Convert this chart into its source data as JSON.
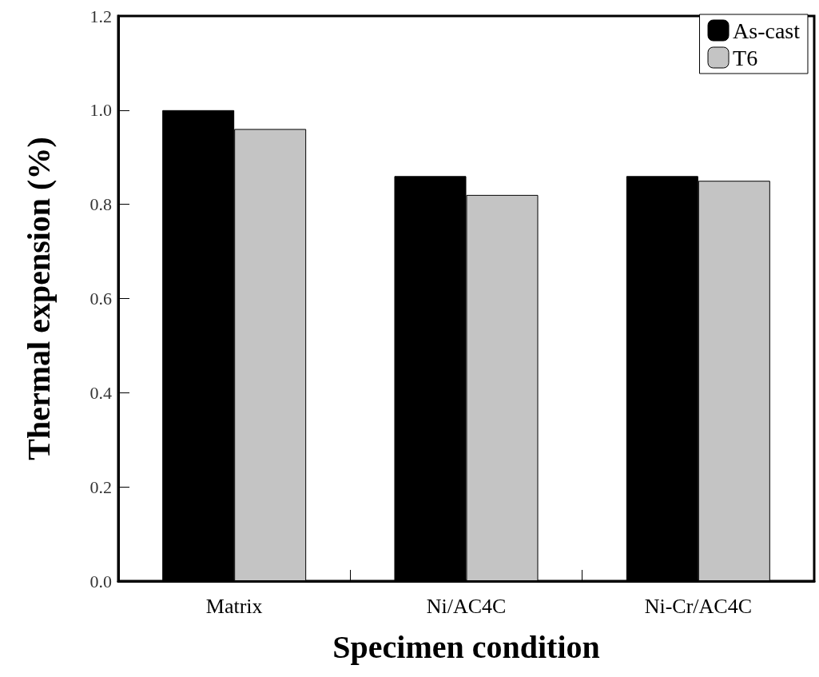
{
  "chart_data": {
    "type": "bar",
    "xlabel": "Specimen condition",
    "ylabel": "Thermal expension (%)",
    "categories": [
      "Matrix",
      "Ni/AC4C",
      "Ni-Cr/AC4C"
    ],
    "series": [
      {
        "name": "As-cast",
        "color": "#000000",
        "values": [
          1.0,
          0.86,
          0.86
        ]
      },
      {
        "name": "T6",
        "color": "#c4c4c4",
        "values": [
          0.96,
          0.82,
          0.85
        ]
      }
    ],
    "ylim": [
      0,
      1.2
    ],
    "yticks": [
      {
        "value": 0,
        "label": "0.0"
      },
      0.2,
      0.4,
      0.6,
      0.8,
      {
        "value": 1,
        "label": "1.0"
      },
      1.2
    ],
    "grid": false,
    "legend": "top right"
  }
}
